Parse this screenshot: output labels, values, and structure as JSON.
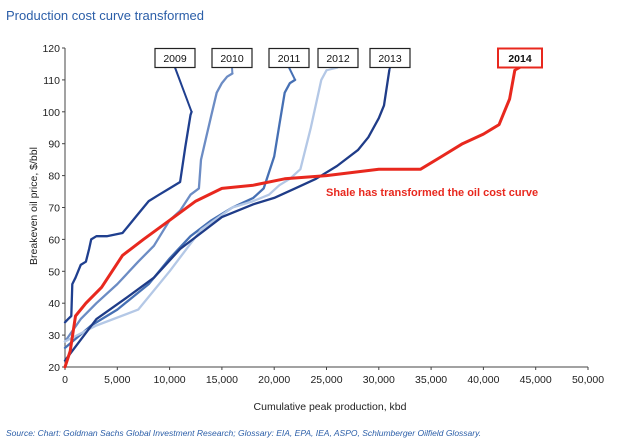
{
  "chart_data": {
    "type": "line",
    "title": "Production cost curve transformed",
    "xlabel": "Cumulative peak production, kbd",
    "ylabel": "Breakeven oil price, $/bbl",
    "xlim": [
      0,
      50000
    ],
    "ylim": [
      20,
      120
    ],
    "x_ticks": [
      "0",
      "5,000",
      "10,000",
      "15,000",
      "20,000",
      "25,000",
      "30,000",
      "35,000",
      "40,000",
      "45,000",
      "50,000"
    ],
    "y_ticks": [
      "20",
      "30",
      "40",
      "50",
      "60",
      "70",
      "80",
      "90",
      "100",
      "110",
      "120"
    ],
    "grid": false,
    "legend_position": "top",
    "annotation": "Shale has transformed the oil cost curve",
    "source": "Source: Chart: Goldman Sachs Global Investment Research; Glossary: EIA, EPA, IEA, ASPO, Schlumberger Oilfield Glossary.",
    "series": [
      {
        "name": "2009",
        "color": "#1f3f8f",
        "x": [
          0,
          300,
          600,
          700,
          1000,
          1500,
          2000,
          2300,
          2500,
          3000,
          4000,
          5500,
          6000,
          7000,
          8000,
          9000,
          10000,
          11000,
          11500,
          12000,
          12100
        ],
        "y": [
          34,
          35,
          36,
          46,
          48,
          52,
          53,
          57,
          60,
          61,
          61,
          62,
          64,
          68,
          72,
          74,
          76,
          78,
          89,
          99,
          100
        ]
      },
      {
        "name": "2010",
        "color": "#6c8cc4",
        "x": [
          0,
          1500,
          3000,
          5000,
          7000,
          8500,
          10000,
          11000,
          12000,
          12800,
          13000,
          13500,
          14000,
          14500,
          15000,
          15500,
          16000
        ],
        "y": [
          28,
          35,
          40,
          46,
          53,
          58,
          66,
          69,
          74,
          76,
          85,
          92,
          99,
          106,
          109,
          111,
          112
        ]
      },
      {
        "name": "2011",
        "color": "#4670b4",
        "x": [
          0,
          2500,
          5000,
          8000,
          10000,
          12000,
          14000,
          16000,
          18000,
          19000,
          20000,
          20500,
          21000,
          21500,
          22000
        ],
        "y": [
          26,
          33,
          38,
          46,
          54,
          61,
          66,
          70,
          73,
          76,
          86,
          96,
          106,
          109,
          110
        ]
      },
      {
        "name": "2012",
        "color": "#b4c8e6",
        "x": [
          0,
          3000,
          7000,
          10000,
          13000,
          16000,
          18000,
          19500,
          20500,
          21500,
          22500,
          23500,
          24500,
          25000
        ],
        "y": [
          28,
          33,
          38,
          50,
          63,
          70,
          72,
          74,
          77,
          79,
          82,
          95,
          110,
          113
        ]
      },
      {
        "name": "2013",
        "color": "#1f3c88",
        "x": [
          0,
          3000,
          6000,
          8500,
          11000,
          15000,
          18000,
          20000,
          22000,
          24000,
          26000,
          28000,
          29000,
          30000,
          30500,
          31000
        ],
        "y": [
          22,
          35,
          42,
          48,
          57,
          67,
          71,
          73,
          76,
          79,
          83,
          88,
          92,
          98,
          102,
          113
        ]
      },
      {
        "name": "2014",
        "color": "#e8281e",
        "x": [
          0,
          500,
          1000,
          2000,
          3500,
          5500,
          7500,
          10000,
          12500,
          15000,
          18000,
          21000,
          25000,
          30000,
          34000,
          36000,
          38000,
          40000,
          41500,
          42000,
          42500,
          43000
        ],
        "y": [
          20,
          25,
          36,
          40,
          45,
          55,
          60,
          66,
          72,
          76,
          77,
          79,
          80,
          82,
          82,
          86,
          90,
          93,
          96,
          100,
          104,
          113
        ]
      }
    ]
  }
}
